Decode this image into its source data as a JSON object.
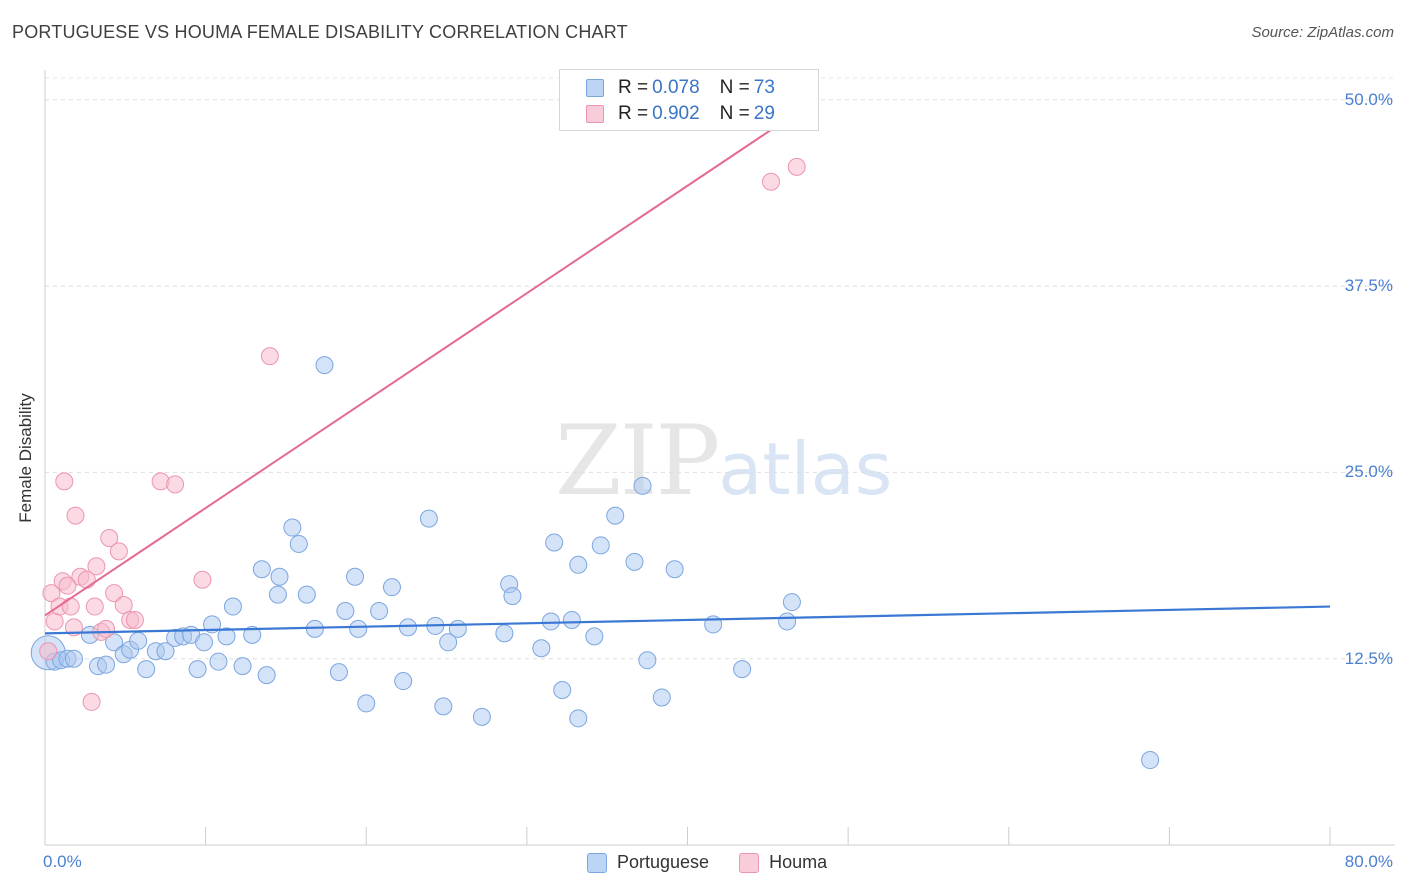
{
  "header": {
    "title": "PORTUGUESE VS HOUMA FEMALE DISABILITY CORRELATION CHART",
    "source": "Source: ZipAtlas.com"
  },
  "watermark": {
    "zip": "ZIP",
    "atlas": "atlas"
  },
  "legend": {
    "rows": [
      {
        "r_label": "R = ",
        "r_value": "0.078",
        "n_label": "N = ",
        "n_value": "73"
      },
      {
        "r_label": "R = ",
        "r_value": "0.902",
        "n_label": "N = ",
        "n_value": "29"
      }
    ]
  },
  "bottom_legend": [
    "Portuguese",
    "Houma"
  ],
  "colors": {
    "blue_fill": "#a9c8f0",
    "blue_stroke": "#7ba6e0",
    "blue_line": "#3a78d4",
    "pink_fill": "#f7bccd",
    "pink_stroke": "#ec95b0",
    "pink_line": "#e46a92",
    "tick_text": "#4a7fd0"
  },
  "chart_data": {
    "type": "scatter",
    "title": "PORTUGUESE VS HOUMA FEMALE DISABILITY CORRELATION CHART",
    "xlabel": "",
    "ylabel": "Female Disability",
    "xlim": [
      0,
      80
    ],
    "ylim": [
      0,
      52
    ],
    "x_tick_labels": [
      "0.0%",
      "80.0%"
    ],
    "y_ticks": [
      12.5,
      25.0,
      37.5,
      50.0
    ],
    "y_tick_labels": [
      "12.5%",
      "25.0%",
      "37.5%",
      "50.0%"
    ],
    "grid": true,
    "series": [
      {
        "name": "Portuguese",
        "color": "#a9c8f0",
        "trend": {
          "x": [
            0,
            80
          ],
          "y": [
            14.2,
            16.0
          ]
        },
        "points": [
          [
            0.2,
            12.9
          ],
          [
            0.6,
            12.3
          ],
          [
            1.0,
            12.4
          ],
          [
            1.4,
            12.5
          ],
          [
            1.8,
            12.5
          ],
          [
            2.8,
            14.1
          ],
          [
            3.3,
            12.0
          ],
          [
            3.8,
            12.1
          ],
          [
            4.3,
            13.6
          ],
          [
            4.9,
            12.8
          ],
          [
            5.3,
            13.1
          ],
          [
            5.8,
            13.7
          ],
          [
            6.3,
            11.8
          ],
          [
            6.9,
            13.0
          ],
          [
            7.5,
            13.0
          ],
          [
            8.1,
            13.9
          ],
          [
            8.6,
            14.0
          ],
          [
            9.1,
            14.1
          ],
          [
            9.5,
            11.8
          ],
          [
            9.9,
            13.6
          ],
          [
            10.4,
            14.8
          ],
          [
            10.8,
            12.3
          ],
          [
            11.3,
            14.0
          ],
          [
            11.7,
            16.0
          ],
          [
            12.3,
            12.0
          ],
          [
            12.9,
            14.1
          ],
          [
            13.5,
            18.5
          ],
          [
            13.8,
            11.4
          ],
          [
            14.5,
            16.8
          ],
          [
            14.6,
            18.0
          ],
          [
            15.4,
            21.3
          ],
          [
            15.8,
            20.2
          ],
          [
            16.3,
            16.8
          ],
          [
            16.8,
            14.5
          ],
          [
            17.4,
            32.2
          ],
          [
            18.3,
            11.6
          ],
          [
            18.7,
            15.7
          ],
          [
            19.3,
            18.0
          ],
          [
            19.5,
            14.5
          ],
          [
            20.0,
            9.5
          ],
          [
            20.8,
            15.7
          ],
          [
            21.6,
            17.3
          ],
          [
            22.3,
            11.0
          ],
          [
            22.6,
            14.6
          ],
          [
            23.9,
            21.9
          ],
          [
            24.3,
            14.7
          ],
          [
            24.8,
            9.3
          ],
          [
            25.1,
            13.6
          ],
          [
            25.7,
            14.5
          ],
          [
            27.2,
            8.6
          ],
          [
            28.6,
            14.2
          ],
          [
            28.9,
            17.5
          ],
          [
            29.1,
            16.7
          ],
          [
            30.9,
            13.2
          ],
          [
            31.5,
            15.0
          ],
          [
            31.7,
            20.3
          ],
          [
            32.2,
            10.4
          ],
          [
            32.8,
            15.1
          ],
          [
            33.2,
            8.5
          ],
          [
            33.2,
            18.8
          ],
          [
            34.2,
            14.0
          ],
          [
            34.6,
            20.1
          ],
          [
            35.5,
            22.1
          ],
          [
            36.7,
            19.0
          ],
          [
            37.2,
            24.1
          ],
          [
            37.5,
            12.4
          ],
          [
            38.4,
            9.9
          ],
          [
            39.2,
            18.5
          ],
          [
            41.6,
            14.8
          ],
          [
            43.4,
            11.8
          ],
          [
            46.2,
            15.0
          ],
          [
            46.5,
            16.3
          ],
          [
            68.8,
            5.7
          ]
        ]
      },
      {
        "name": "Houma",
        "color": "#f7bccd",
        "trend": {
          "x": [
            0,
            48
          ],
          "y": [
            15.4,
            50.0
          ]
        },
        "points": [
          [
            0.2,
            13.0
          ],
          [
            0.4,
            16.9
          ],
          [
            0.6,
            15.0
          ],
          [
            0.9,
            16.0
          ],
          [
            1.1,
            17.7
          ],
          [
            1.2,
            24.4
          ],
          [
            1.4,
            17.4
          ],
          [
            1.6,
            16.0
          ],
          [
            1.8,
            14.6
          ],
          [
            1.9,
            22.1
          ],
          [
            2.2,
            18.0
          ],
          [
            2.6,
            17.8
          ],
          [
            2.9,
            9.6
          ],
          [
            3.1,
            16.0
          ],
          [
            3.2,
            18.7
          ],
          [
            3.5,
            14.3
          ],
          [
            3.8,
            14.5
          ],
          [
            4.0,
            20.6
          ],
          [
            4.3,
            16.9
          ],
          [
            4.6,
            19.7
          ],
          [
            4.9,
            16.1
          ],
          [
            5.3,
            15.1
          ],
          [
            5.6,
            15.1
          ],
          [
            7.2,
            24.4
          ],
          [
            8.1,
            24.2
          ],
          [
            9.8,
            17.8
          ],
          [
            14.0,
            32.8
          ],
          [
            45.2,
            44.5
          ],
          [
            46.8,
            45.5
          ]
        ]
      }
    ]
  }
}
